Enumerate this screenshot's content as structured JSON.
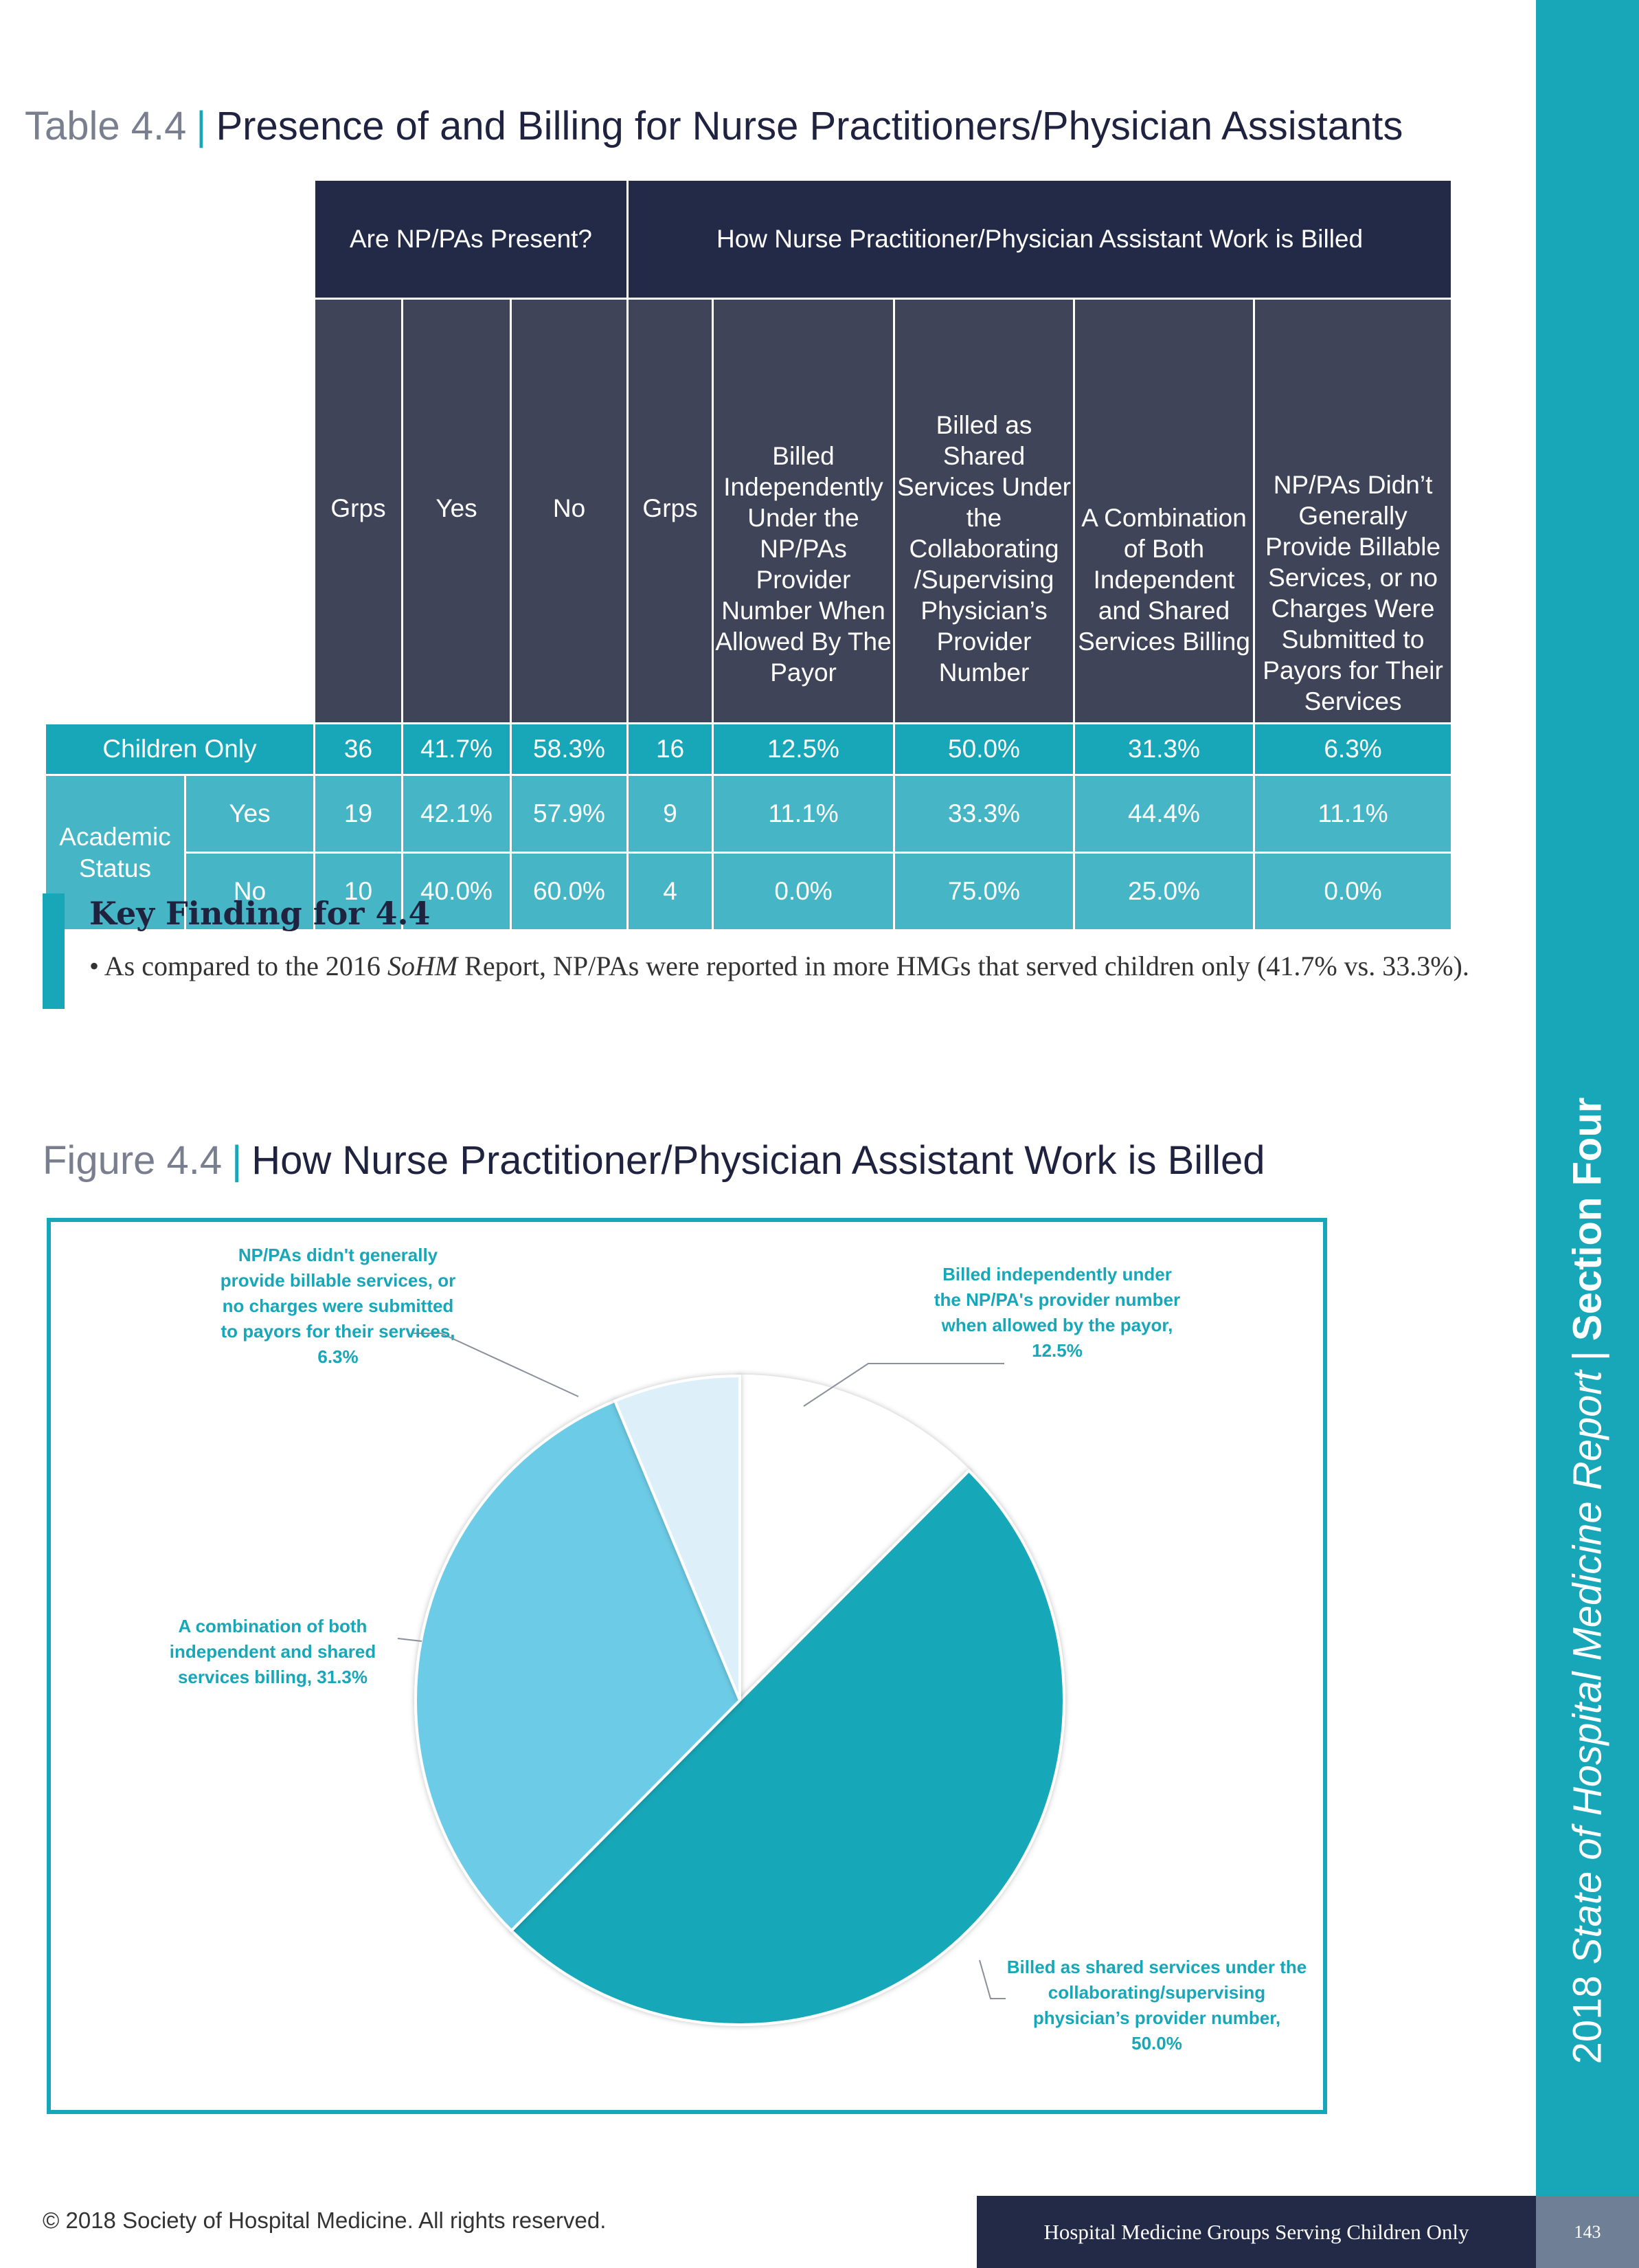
{
  "table": {
    "label": "Table 4.4",
    "title": "Presence of and Billing for Nurse Practitioners/Physician Assistants",
    "group_present": "Are NP/PAs Present?",
    "group_billed": "How Nurse Practitioner/Physician Assistant Work is Billed",
    "columns": [
      "Grps",
      "Yes",
      "No",
      "Grps",
      "Billed Independently Under the NP/PAs Provider Number When Allowed By The Payor",
      "Billed as Shared Services Under the Collaborating /Supervising Physician’s Provider Number",
      "A Combination of Both Independent and Shared Services Billing",
      "NP/PAs Didn’t Generally Provide Billable Services, or no Charges Were Submitted to Payors for Their Services"
    ],
    "rows": [
      {
        "group": "Children Only",
        "sub": "",
        "values": [
          "36",
          "41.7%",
          "58.3%",
          "16",
          "12.5%",
          "50.0%",
          "31.3%",
          "6.3%"
        ]
      },
      {
        "group": "Academic Status",
        "sub": "Yes",
        "values": [
          "19",
          "42.1%",
          "57.9%",
          "9",
          "11.1%",
          "33.3%",
          "44.4%",
          "11.1%"
        ]
      },
      {
        "group": "Academic Status",
        "sub": "No",
        "values": [
          "10",
          "40.0%",
          "60.0%",
          "4",
          "0.0%",
          "75.0%",
          "25.0%",
          "0.0%"
        ]
      }
    ]
  },
  "key_finding": {
    "title": "Key Finding for 4.4",
    "text_pre": "• As compared to the 2016 ",
    "text_em": "SoHM",
    "text_post": " Report, NP/PAs were reported in more HMGs that served children only (41.7% vs. 33.3%)."
  },
  "figure": {
    "label": "Figure 4.4",
    "title": "How Nurse Practitioner/Physician Assistant Work is Billed"
  },
  "chart_data": {
    "type": "pie",
    "slices": [
      {
        "label": "Billed independently under the NP/PA's provider number when allowed by the payor, 12.5%",
        "value": 12.5,
        "color": "#ffffff"
      },
      {
        "label": "Billed as shared services under the collaborating/supervising physician’s provider number, 50.0%",
        "value": 50.0,
        "color": "#17a7b8"
      },
      {
        "label": "A combination of both independent and shared services billing, 31.3%",
        "value": 31.3,
        "color": "#6ccbe6"
      },
      {
        "label": "NP/PAs didn't generally provide billable services, or no charges were submitted to payors for their services, 6.3%",
        "value": 6.3,
        "color": "#ddf0fa"
      }
    ]
  },
  "sidebar": {
    "part1": "2018",
    "part2": "State of Hospital Medicine Report",
    "sep": "|",
    "part3": "Section Four"
  },
  "footer": {
    "copyright": "© 2018 Society of Hospital Medicine. All rights reserved.",
    "section": "Hospital  Medicine Groups Serving Children Only",
    "page": "143"
  }
}
